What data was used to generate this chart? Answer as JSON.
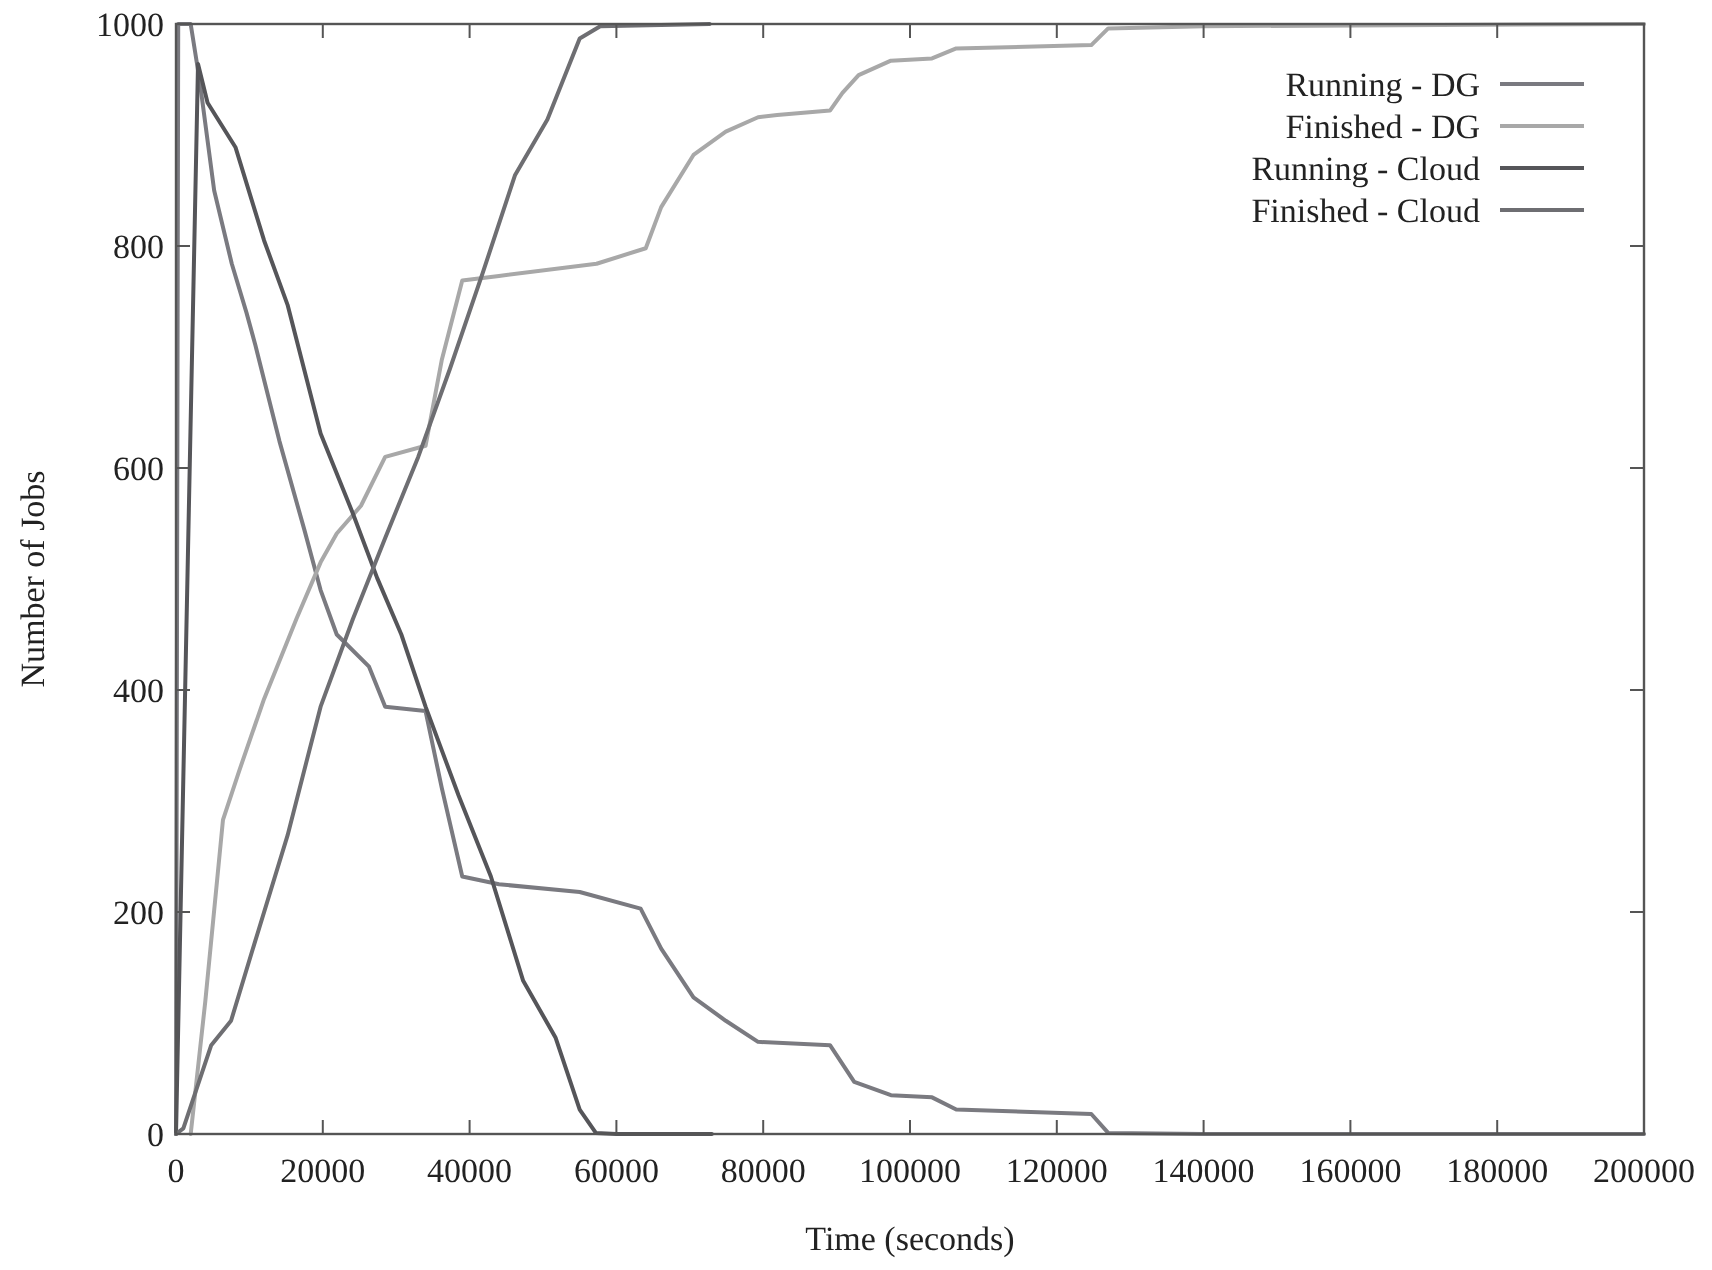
{
  "chart_data": {
    "type": "line",
    "xlabel": "Time (seconds)",
    "ylabel": "Number of Jobs",
    "xlim": [
      0,
      200000
    ],
    "ylim": [
      0,
      1000
    ],
    "xticks": [
      0,
      20000,
      40000,
      60000,
      80000,
      100000,
      120000,
      140000,
      160000,
      180000,
      200000
    ],
    "yticks": [
      0,
      200,
      400,
      600,
      800,
      1000
    ],
    "grid": false,
    "legend": "top right",
    "marker": "none",
    "line_style": "solid",
    "series": [
      {
        "name": "Running - DG",
        "color": "#7a7a80",
        "x": [
          0,
          300,
          2000,
          3200,
          5200,
          7600,
          9600,
          10800,
          14100,
          17500,
          19700,
          21900,
          26300,
          28500,
          34000,
          36200,
          39000,
          44000,
          55000,
          63300,
          66100,
          70500,
          74900,
          79300,
          89100,
          92400,
          97400,
          103000,
          106300,
          124700,
          127000,
          140000,
          200000
        ],
        "values": [
          0,
          1000,
          1000,
          950,
          850,
          784,
          740,
          711,
          624,
          544,
          490,
          450,
          421,
          385,
          381,
          312,
          232,
          225,
          218,
          203,
          167,
          123,
          102,
          83,
          80,
          47,
          35,
          33,
          22,
          18,
          1,
          0,
          0
        ]
      },
      {
        "name": "Finished - DG",
        "color": "#a8a8a8",
        "x": [
          2000,
          4000,
          6400,
          8600,
          12000,
          16400,
          19700,
          21900,
          25200,
          28500,
          34000,
          36200,
          39000,
          44000,
          57300,
          64000,
          66100,
          70500,
          74900,
          79300,
          81900,
          89100,
          90800,
          93000,
          97400,
          103000,
          106300,
          124700,
          127000,
          140000,
          200000
        ],
        "values": [
          0,
          120,
          283,
          327,
          392,
          464,
          515,
          541,
          566,
          610,
          620,
          697,
          769,
          773,
          784,
          798,
          835,
          882,
          903,
          916,
          918,
          922,
          938,
          954,
          967,
          969,
          978,
          981,
          996,
          998,
          1000
        ]
      },
      {
        "name": "Running - Cloud",
        "color": "#555559",
        "x": [
          0,
          3000,
          4300,
          8100,
          12000,
          15200,
          19700,
          24100,
          27400,
          30700,
          34000,
          38500,
          42900,
          47300,
          51700,
          55000,
          57200,
          60000,
          73000
        ],
        "values": [
          0,
          964,
          929,
          889,
          805,
          747,
          631,
          559,
          501,
          450,
          385,
          305,
          232,
          138,
          87,
          22,
          1,
          0,
          0
        ]
      },
      {
        "name": "Finished - Cloud",
        "color": "#6e6e72",
        "x": [
          0,
          1000,
          4800,
          7500,
          10800,
          15200,
          19700,
          24100,
          28500,
          33000,
          37300,
          41800,
          46200,
          50600,
          55000,
          57800,
          72700
        ],
        "values": [
          0,
          5,
          80,
          102,
          174,
          269,
          385,
          464,
          537,
          610,
          689,
          776,
          864,
          914,
          987,
          998,
          1000
        ]
      }
    ]
  }
}
